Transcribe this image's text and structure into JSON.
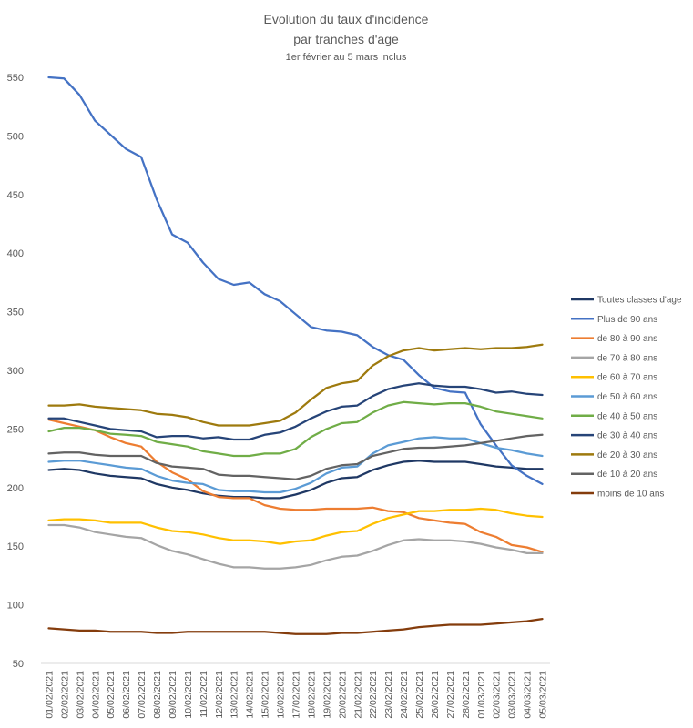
{
  "chart_data": {
    "type": "line",
    "title": "Evolution du taux d'incidence",
    "title_line2": "par tranches d'age",
    "subtitle": "1er février au 5 mars inclus",
    "xlabel": "",
    "ylabel": "",
    "ylim": [
      50,
      550
    ],
    "yticks": [
      50,
      100,
      150,
      200,
      250,
      300,
      350,
      400,
      450,
      500,
      550
    ],
    "grid": false,
    "legend_position": "right",
    "x": [
      "01/02/2021",
      "02/02/2021",
      "03/02/2021",
      "04/02/2021",
      "05/02/2021",
      "06/02/2021",
      "07/02/2021",
      "08/02/2021",
      "09/02/2021",
      "10/02/2021",
      "11/02/2021",
      "12/02/2021",
      "13/02/2021",
      "14/02/2021",
      "15/02/2021",
      "16/02/2021",
      "17/02/2021",
      "18/02/2021",
      "19/02/2021",
      "20/02/2021",
      "21/02/2021",
      "22/02/2021",
      "23/02/2021",
      "24/02/2021",
      "25/02/2021",
      "26/02/2021",
      "27/02/2021",
      "28/02/2021",
      "01/03/2021",
      "02/03/2021",
      "03/03/2021",
      "04/03/2021",
      "05/03/2021"
    ],
    "series": [
      {
        "name": "Toutes classes d'age",
        "color": "#1f3864",
        "values": [
          215,
          216,
          215,
          212,
          210,
          209,
          208,
          203,
          200,
          198,
          195,
          193,
          192,
          192,
          191,
          191,
          194,
          198,
          204,
          208,
          209,
          215,
          219,
          222,
          223,
          222,
          222,
          222,
          220,
          218,
          217,
          216,
          216
        ]
      },
      {
        "name": "Plus de 90 ans",
        "color": "#4472c4",
        "values": [
          550,
          549,
          535,
          513,
          501,
          489,
          482,
          446,
          416,
          409,
          392,
          378,
          373,
          375,
          365,
          359,
          348,
          337,
          334,
          333,
          330,
          320,
          313,
          309,
          296,
          285,
          282,
          281,
          254,
          236,
          219,
          210,
          203
        ]
      },
      {
        "name": "de 80 à 90 ans",
        "color": "#ed7d31",
        "values": [
          258,
          255,
          252,
          249,
          243,
          238,
          235,
          222,
          213,
          207,
          197,
          192,
          191,
          191,
          185,
          182,
          181,
          181,
          182,
          182,
          182,
          183,
          180,
          179,
          174,
          172,
          170,
          169,
          162,
          158,
          151,
          149,
          145
        ]
      },
      {
        "name": "de 70 à 80 ans",
        "color": "#a5a5a5",
        "values": [
          168,
          168,
          166,
          162,
          160,
          158,
          157,
          151,
          146,
          143,
          139,
          135,
          132,
          132,
          131,
          131,
          132,
          134,
          138,
          141,
          142,
          146,
          151,
          155,
          156,
          155,
          155,
          154,
          152,
          149,
          147,
          144,
          144
        ]
      },
      {
        "name": "de 60 à 70 ans",
        "color": "#ffc000",
        "values": [
          172,
          173,
          173,
          172,
          170,
          170,
          170,
          166,
          163,
          162,
          160,
          157,
          155,
          155,
          154,
          152,
          154,
          155,
          159,
          162,
          163,
          169,
          174,
          177,
          180,
          180,
          181,
          181,
          182,
          181,
          178,
          176,
          175
        ]
      },
      {
        "name": "de 50 à 60 ans",
        "color": "#5b9bd5",
        "values": [
          222,
          223,
          223,
          221,
          219,
          217,
          216,
          210,
          206,
          204,
          203,
          198,
          197,
          197,
          196,
          196,
          199,
          204,
          212,
          217,
          218,
          229,
          236,
          239,
          242,
          243,
          242,
          242,
          238,
          234,
          232,
          229,
          227
        ]
      },
      {
        "name": "de 40 à 50 ans",
        "color": "#70ad47",
        "values": [
          248,
          251,
          251,
          249,
          246,
          245,
          244,
          239,
          237,
          235,
          231,
          229,
          227,
          227,
          229,
          229,
          233,
          243,
          250,
          255,
          256,
          264,
          270,
          273,
          272,
          271,
          272,
          272,
          269,
          265,
          263,
          261,
          259
        ]
      },
      {
        "name": "de 30 à 40 ans",
        "color": "#264478",
        "values": [
          259,
          259,
          256,
          253,
          250,
          249,
          248,
          243,
          244,
          244,
          242,
          243,
          241,
          241,
          245,
          247,
          252,
          259,
          265,
          269,
          270,
          278,
          284,
          287,
          289,
          287,
          286,
          286,
          284,
          281,
          282,
          280,
          279
        ]
      },
      {
        "name": "de 20 à 30 ans",
        "color": "#9e7a0e",
        "values": [
          270,
          270,
          271,
          269,
          268,
          267,
          266,
          263,
          262,
          260,
          256,
          253,
          253,
          253,
          255,
          257,
          264,
          275,
          285,
          289,
          291,
          304,
          312,
          317,
          319,
          317,
          318,
          319,
          318,
          319,
          319,
          320,
          322
        ]
      },
      {
        "name": "de 10 à 20 ans",
        "color": "#636363",
        "values": [
          229,
          230,
          230,
          228,
          227,
          227,
          227,
          221,
          218,
          217,
          216,
          211,
          210,
          210,
          209,
          208,
          207,
          210,
          216,
          219,
          220,
          227,
          230,
          233,
          234,
          234,
          235,
          236,
          238,
          240,
          242,
          244,
          245
        ]
      },
      {
        "name": "moins de 10 ans",
        "color": "#843c0c",
        "values": [
          80,
          79,
          78,
          78,
          77,
          77,
          77,
          76,
          76,
          77,
          77,
          77,
          77,
          77,
          77,
          76,
          75,
          75,
          75,
          76,
          76,
          77,
          78,
          79,
          81,
          82,
          83,
          83,
          83,
          84,
          85,
          86,
          88
        ]
      }
    ]
  }
}
